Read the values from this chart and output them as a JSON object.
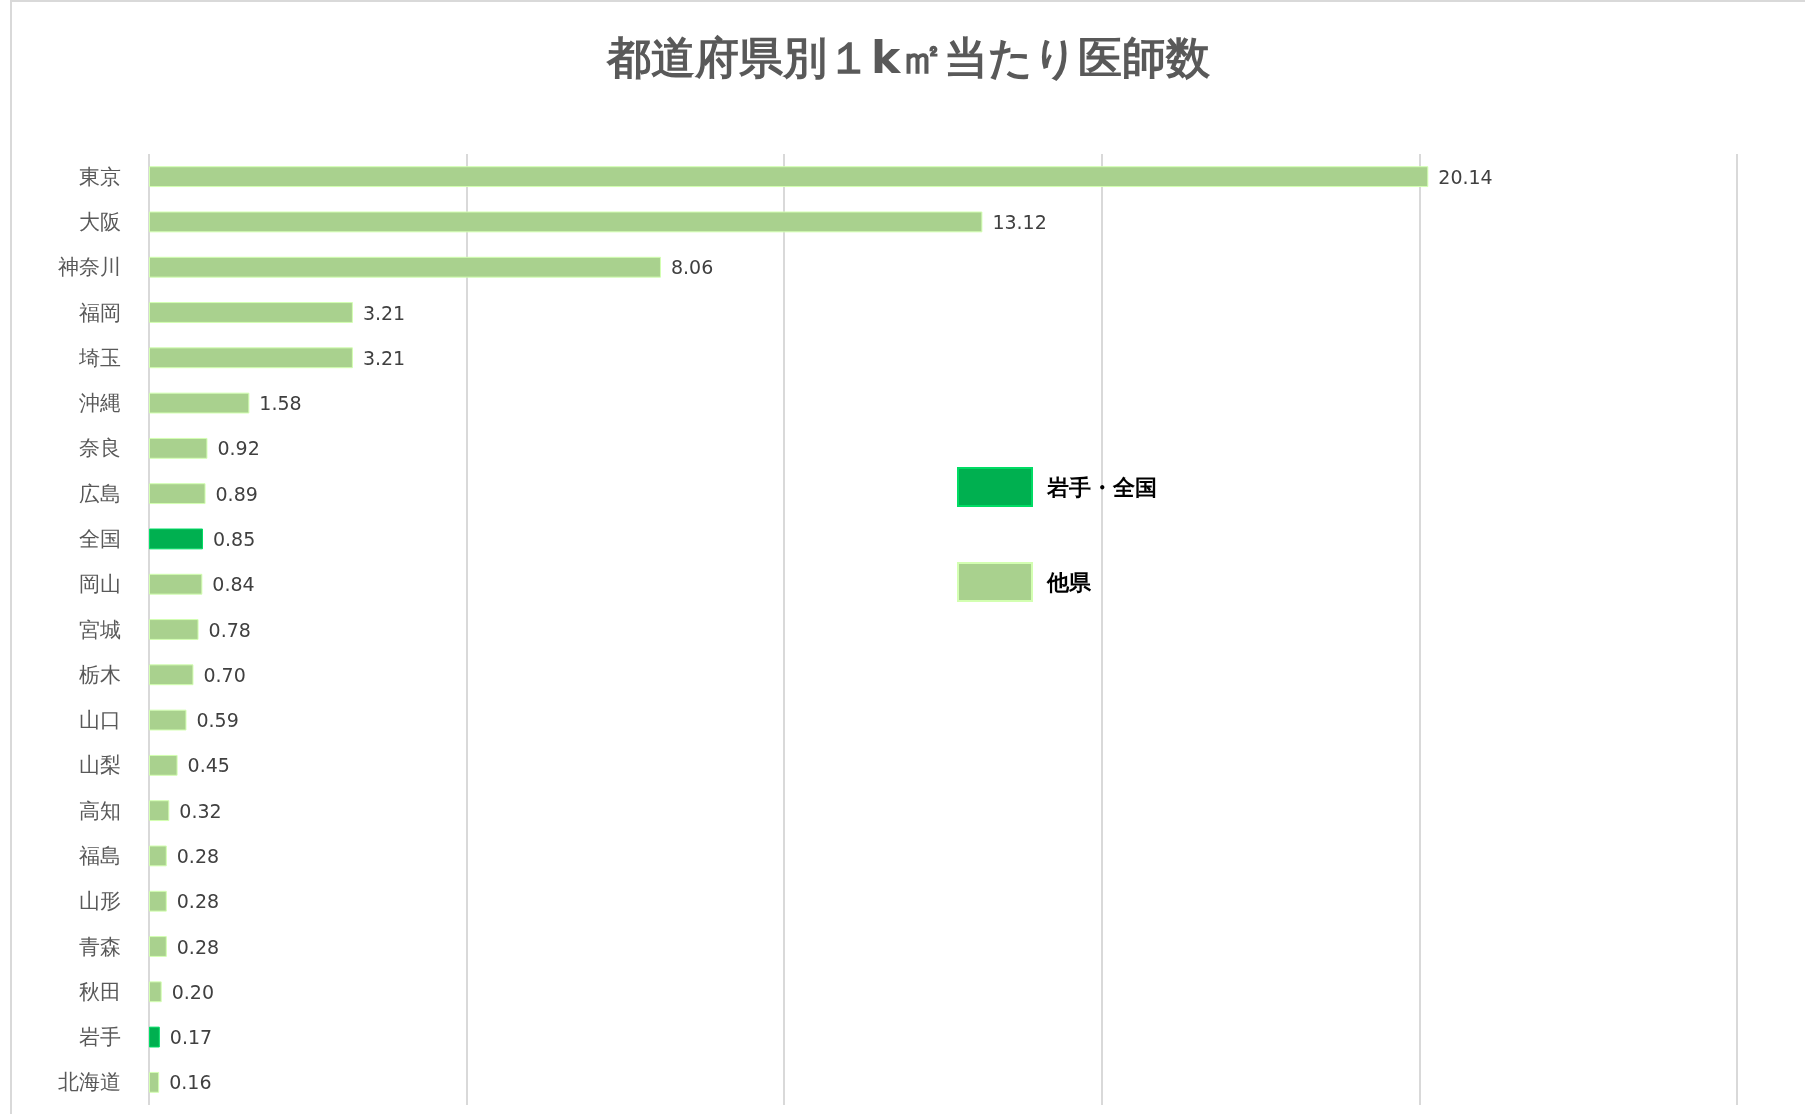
{
  "chart_data": {
    "type": "bar",
    "orientation": "horizontal",
    "title": "都道府県別１k㎡当たり医師数",
    "categories": [
      "東京",
      "大阪",
      "神奈川",
      "福岡",
      "埼玉",
      "沖縄",
      "奈良",
      "広島",
      "全国",
      "岡山",
      "宮城",
      "栃木",
      "山口",
      "山梨",
      "高知",
      "福島",
      "山形",
      "青森",
      "秋田",
      "岩手",
      "北海道"
    ],
    "series": [
      {
        "name": "岩手・全国",
        "color": "#00b050",
        "values": [
          null,
          null,
          null,
          null,
          null,
          null,
          null,
          null,
          0.85,
          null,
          null,
          null,
          null,
          null,
          null,
          null,
          null,
          null,
          null,
          0.17,
          null
        ],
        "value_labels": [
          null,
          null,
          null,
          null,
          null,
          null,
          null,
          null,
          "0.85",
          null,
          null,
          null,
          null,
          null,
          null,
          null,
          null,
          null,
          null,
          "0.17",
          null
        ]
      },
      {
        "name": "他県",
        "color": "#a9d18e",
        "values": [
          20.14,
          13.12,
          8.06,
          3.21,
          3.21,
          1.58,
          0.92,
          0.89,
          null,
          0.84,
          0.78,
          0.7,
          0.59,
          0.45,
          0.32,
          0.28,
          0.28,
          0.28,
          0.2,
          null,
          0.16
        ],
        "value_labels": [
          "20.14",
          "13.12",
          "8.06",
          "3.21",
          "3.21",
          "1.58",
          "0.92",
          "0.89",
          null,
          "0.84",
          "0.78",
          "0.70",
          "0.59",
          "0.45",
          "0.32",
          "0.28",
          "0.28",
          "0.28",
          "0.20",
          null,
          "0.16"
        ]
      }
    ],
    "grid": "x",
    "tick_labels": "y",
    "legend": "right"
  }
}
